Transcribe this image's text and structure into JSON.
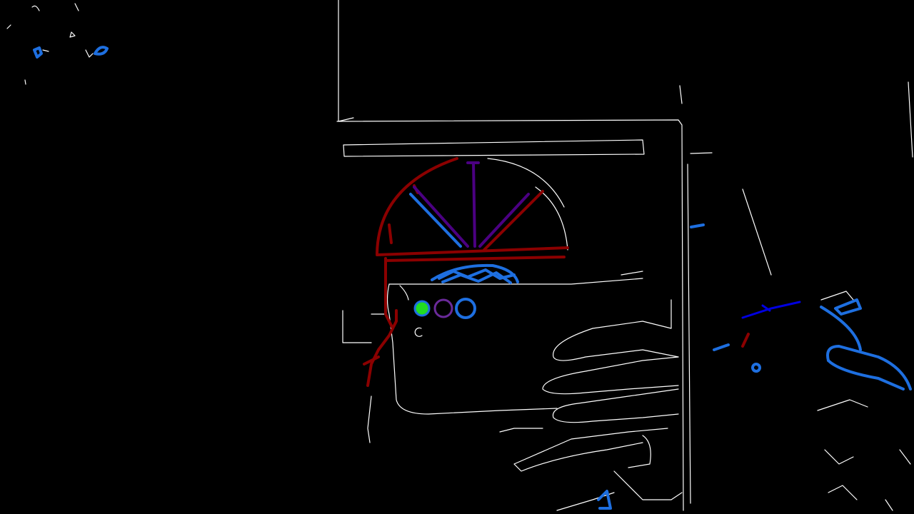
{
  "image": {
    "kind": "edge-detection overlay",
    "background": "#000000"
  },
  "colors": {
    "edge": "#ffffff",
    "arch_red": "#8b0000",
    "spoke_purple": "#4b0082",
    "accent_blue": "#1e6fe0",
    "deep_blue": "#0000e0",
    "dot_green": "#22dd22"
  },
  "legend_marks": [
    {
      "name": "green-dot",
      "color": "#22dd22",
      "style": "filled"
    },
    {
      "name": "purple-ring",
      "color": "#6a2a9a",
      "style": "ring"
    },
    {
      "name": "blue-ring",
      "color": "#1e6fe0",
      "style": "ring"
    }
  ]
}
